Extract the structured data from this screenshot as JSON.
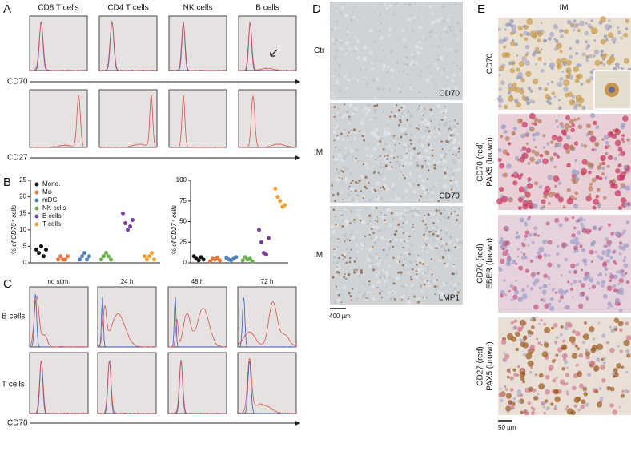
{
  "panel_a": {
    "label": "A",
    "columns": [
      "CD8 T cells",
      "CD4 T cells",
      "NK cells",
      "B cells"
    ],
    "axes": [
      "CD70",
      "CD27"
    ]
  },
  "panel_b": {
    "label": "B",
    "legend": [
      "Mono.",
      "Mφ",
      "mDC",
      "NK cells",
      "B cells",
      "T cells"
    ],
    "colors": [
      "#111111",
      "#e8743b",
      "#4f81bd",
      "#6ab04c",
      "#7b3fa0",
      "#f0a030"
    ],
    "charts": [
      {
        "y_label": "% of CD70⁺ cells",
        "ylim": [
          0,
          25
        ],
        "yticks": [
          0,
          5,
          10,
          15,
          20,
          25
        ],
        "values": [
          [
            4,
            3,
            5,
            2,
            4
          ],
          [
            1,
            2,
            1,
            1,
            2
          ],
          [
            1,
            2,
            3,
            1,
            2
          ],
          [
            1,
            2,
            3,
            2,
            1
          ],
          [
            15,
            12,
            10,
            11,
            13
          ],
          [
            2,
            1,
            2,
            3,
            1
          ]
        ]
      },
      {
        "y_label": "% of CD27⁺ cells",
        "ylim": [
          0,
          100
        ],
        "yticks": [
          0,
          25,
          50,
          75,
          100
        ],
        "values": [
          [
            8,
            5,
            3,
            7,
            4
          ],
          [
            2,
            5,
            4,
            6,
            3
          ],
          [
            6,
            4,
            3,
            5,
            7
          ],
          [
            3,
            7,
            4,
            5,
            2
          ],
          [
            40,
            25,
            12,
            10,
            30
          ],
          [
            90,
            80,
            75,
            68,
            70
          ]
        ]
      }
    ]
  },
  "panel_c": {
    "label": "C",
    "columns": [
      "no stim.",
      "24 h",
      "48 h",
      "72 h"
    ],
    "rows": [
      "B cells",
      "T cells"
    ],
    "axis": "CD70"
  },
  "panel_d": {
    "label": "D",
    "rows": [
      {
        "label": "Ctr",
        "stain": "CD70"
      },
      {
        "label": "IM",
        "stain": "CD70"
      },
      {
        "label": "IM",
        "stain": "LMP1"
      }
    ],
    "scale_bar": "400 µm"
  },
  "panel_e": {
    "label": "E",
    "title": "IM",
    "rows": [
      [
        "CD70"
      ],
      [
        "CD70 (red)",
        "PAX5 (brown)"
      ],
      [
        "CD70 (red)",
        "EBER (brown)"
      ],
      [
        "CD27 (red)",
        "PAX5 (brown)"
      ]
    ],
    "scale_bar": "50 µm"
  }
}
